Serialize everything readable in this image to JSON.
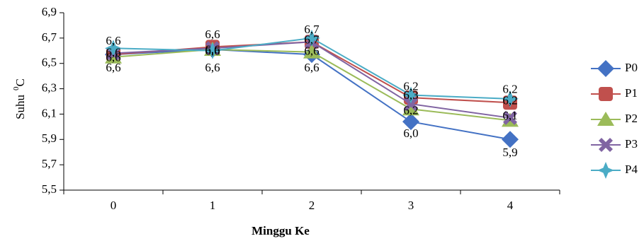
{
  "chart_data": {
    "type": "line",
    "categories": [
      "0",
      "1",
      "2",
      "3",
      "4"
    ],
    "xlabel": "Minggu Ke",
    "ylabel": "Suhu",
    "ylabel_sup": "0",
    "ylabel_unit": "C",
    "ylim": [
      5.5,
      6.9
    ],
    "yticks": [
      "5,5",
      "5,7",
      "5,9",
      "6,1",
      "6,3",
      "6,5",
      "6,7",
      "6,9"
    ],
    "grid": false,
    "legend": "right",
    "series": [
      {
        "name": "P0",
        "values": [
          6.57,
          6.61,
          6.57,
          6.04,
          5.9
        ],
        "color": "#4472C4",
        "marker": "diamond"
      },
      {
        "name": "P1",
        "values": [
          6.57,
          6.63,
          6.67,
          6.23,
          6.19
        ],
        "color": "#C0504D",
        "marker": "square"
      },
      {
        "name": "P2",
        "values": [
          6.55,
          6.61,
          6.59,
          6.14,
          6.05
        ],
        "color": "#9BBB59",
        "marker": "triangle"
      },
      {
        "name": "P3",
        "values": [
          6.58,
          6.62,
          6.67,
          6.18,
          6.07
        ],
        "color": "#8064A2",
        "marker": "x"
      },
      {
        "name": "P4",
        "values": [
          6.62,
          6.6,
          6.7,
          6.25,
          6.22
        ],
        "color": "#4BACC6",
        "marker": "star"
      }
    ],
    "data_labels": [
      {
        "text": "6,6",
        "x": 0,
        "y": 6.67
      },
      {
        "text": "6,6",
        "x": 0,
        "y": 6.58
      },
      {
        "text": "6,6",
        "x": 0,
        "y": 6.54
      },
      {
        "text": "6,6",
        "x": 0,
        "y": 6.46
      },
      {
        "text": "6,6",
        "x": 1,
        "y": 6.72
      },
      {
        "text": "6,6",
        "x": 1,
        "y": 6.6
      },
      {
        "text": "6,6",
        "x": 1,
        "y": 6.59
      },
      {
        "text": "6,6",
        "x": 1,
        "y": 6.46
      },
      {
        "text": "6,7",
        "x": 2,
        "y": 6.76
      },
      {
        "text": "6,7",
        "x": 2,
        "y": 6.68
      },
      {
        "text": "6,6",
        "x": 2,
        "y": 6.59
      },
      {
        "text": "6,6",
        "x": 2,
        "y": 6.46
      },
      {
        "text": "6,2",
        "x": 3,
        "y": 6.31
      },
      {
        "text": "6,3",
        "x": 3,
        "y": 6.24
      },
      {
        "text": "6,2",
        "x": 3,
        "y": 6.12
      },
      {
        "text": "6,0",
        "x": 3,
        "y": 5.94
      },
      {
        "text": "6,2",
        "x": 4,
        "y": 6.29
      },
      {
        "text": "6,2",
        "x": 4,
        "y": 6.2
      },
      {
        "text": "6,1",
        "x": 4,
        "y": 6.08
      },
      {
        "text": "5,9",
        "x": 4,
        "y": 5.79
      }
    ]
  }
}
